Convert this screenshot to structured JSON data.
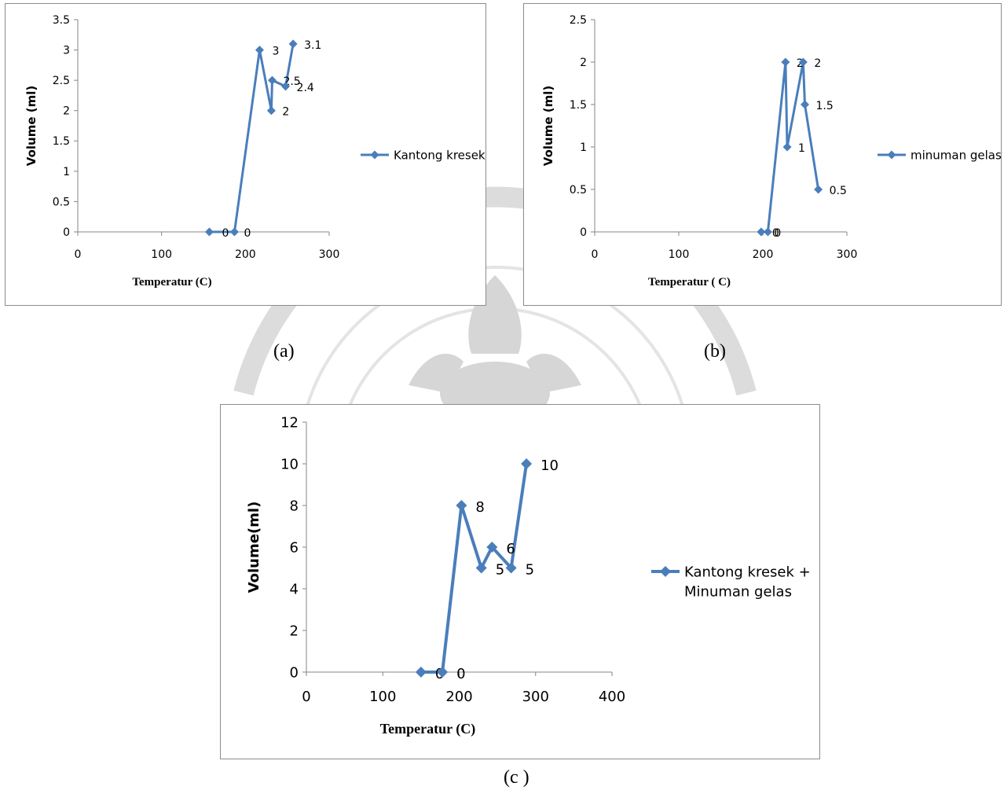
{
  "colors": {
    "series": "#4a7ebb",
    "axis": "#868686",
    "text": "#000000",
    "watermark": "#d8d8d8"
  },
  "charts": [
    {
      "id": "a",
      "caption": "(a)",
      "chart_data": {
        "type": "scatter",
        "xlabel": "Temperatur (C)",
        "ylabel": "Volume (ml)",
        "xlim": [
          0,
          300
        ],
        "ylim": [
          0,
          3.5
        ],
        "xticks": [
          0,
          100,
          200,
          300
        ],
        "yticks": [
          0,
          0.5,
          1,
          1.5,
          2,
          2.5,
          3,
          3.5
        ],
        "xtick_labels": [
          "0",
          "100",
          "200",
          "300"
        ],
        "ytick_labels": [
          "0",
          "0.5",
          "1",
          "1.5",
          "2",
          "2.5",
          "3",
          "3.5"
        ],
        "legend_position": "right",
        "grid": false,
        "series": [
          {
            "name": "Kantong kresek",
            "x": [
              157,
              187,
              217,
              231,
              232,
              248,
              257
            ],
            "y": [
              0,
              0,
              3,
              2,
              2.5,
              2.4,
              3.1
            ],
            "data_labels": [
              "0",
              "0",
              "3",
              "2",
              "2.5",
              "2.4",
              "3.1"
            ]
          }
        ]
      }
    },
    {
      "id": "b",
      "caption": "(b)",
      "chart_data": {
        "type": "scatter",
        "xlabel": "Temperatur ( C)",
        "ylabel": "Volume  (ml)",
        "xlim": [
          0,
          300
        ],
        "ylim": [
          0,
          2.5
        ],
        "xticks": [
          0,
          100,
          200,
          300
        ],
        "yticks": [
          0,
          0.5,
          1,
          1.5,
          2,
          2.5
        ],
        "xtick_labels": [
          "0",
          "100",
          "200",
          "300"
        ],
        "ytick_labels": [
          "0",
          "0.5",
          "1",
          "1.5",
          "2",
          "2.5"
        ],
        "legend_position": "right",
        "grid": false,
        "series": [
          {
            "name": "minuman gelas",
            "x": [
              198,
              206,
              227,
              229,
              248,
              250,
              266
            ],
            "y": [
              0,
              0,
              2,
              1,
              2,
              1.5,
              0.5
            ],
            "data_labels": [
              "0",
              "0",
              "2",
              "1",
              "2",
              "1.5",
              "0.5"
            ]
          }
        ]
      }
    },
    {
      "id": "c",
      "caption": "(c )",
      "chart_data": {
        "type": "scatter",
        "xlabel": "Temperatur (C)",
        "ylabel": "Volume(ml)",
        "xlim": [
          0,
          400
        ],
        "ylim": [
          0,
          12
        ],
        "xticks": [
          0,
          100,
          200,
          300,
          400
        ],
        "yticks": [
          0,
          2,
          4,
          6,
          8,
          10,
          12
        ],
        "xtick_labels": [
          "0",
          "100",
          "200",
          "300",
          "400"
        ],
        "ytick_labels": [
          "0",
          "2",
          "4",
          "6",
          "8",
          "10",
          "12"
        ],
        "legend_position": "right",
        "grid": false,
        "series": [
          {
            "name": "Kantong kresek + Minuman gelas",
            "name_lines": [
              "Kantong kresek +",
              "Minuman gelas"
            ],
            "x": [
              150,
              178,
              203,
              229,
              243,
              268,
              288
            ],
            "y": [
              0,
              0,
              8,
              5,
              6,
              5,
              10
            ],
            "data_labels": [
              "0",
              "0",
              "8",
              "5",
              "6",
              "5",
              "10"
            ]
          }
        ]
      }
    }
  ]
}
